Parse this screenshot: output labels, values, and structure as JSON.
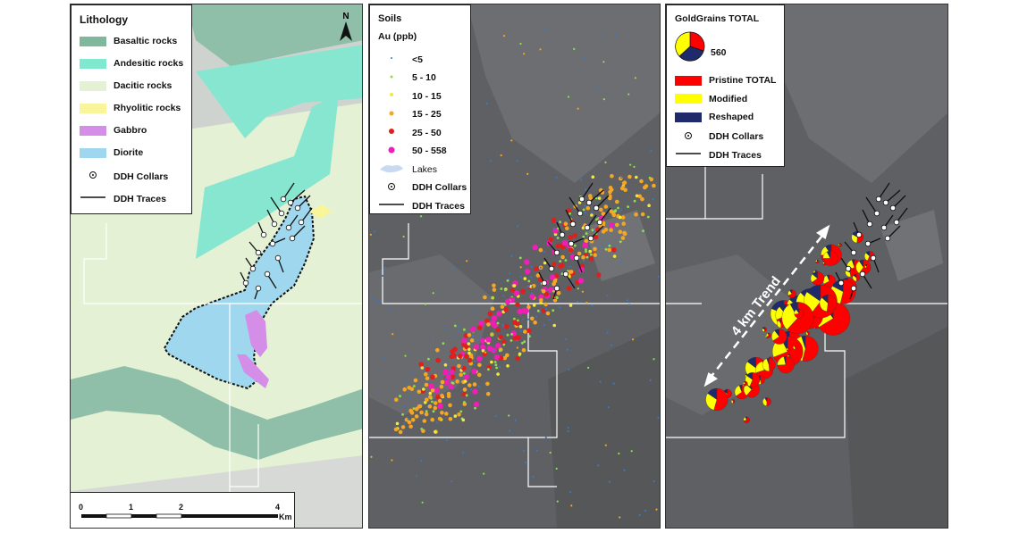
{
  "panel1": {
    "legend": {
      "title": "Lithology",
      "items": [
        {
          "label": "Basaltic rocks",
          "color": "#7fb89d"
        },
        {
          "label": "Andesitic rocks",
          "color": "#7fe8cf"
        },
        {
          "label": "Dacitic rocks",
          "color": "#e4f1d5"
        },
        {
          "label": "Rhyolitic rocks",
          "color": "#f8f59a"
        },
        {
          "label": "Gabbro",
          "color": "#d48ee8"
        },
        {
          "label": "Diorite",
          "color": "#9fd7ee"
        },
        {
          "label": "DDH Collars",
          "symbol": "collar"
        },
        {
          "label": "DDH Traces",
          "symbol": "trace"
        }
      ]
    },
    "north": "N",
    "scale": {
      "labels": [
        "0",
        "1",
        "2",
        "4"
      ],
      "unit": "Km"
    }
  },
  "panel2": {
    "legend": {
      "title": "Soils",
      "subtitle": "Au (ppb)",
      "items": [
        {
          "label": "<5",
          "color": "#3a78c8"
        },
        {
          "label": "5 - 10",
          "color": "#8ee04a"
        },
        {
          "label": "10 - 15",
          "color": "#f2e83a"
        },
        {
          "label": "15 - 25",
          "color": "#f5a623"
        },
        {
          "label": "25 - 50",
          "color": "#e01e1e"
        },
        {
          "label": "50 - 558",
          "color": "#f01eb4"
        },
        {
          "label": "Lakes",
          "color": "#c9daf0"
        },
        {
          "label": "DDH Collars",
          "symbol": "collar"
        },
        {
          "label": "DDH Traces",
          "symbol": "trace"
        }
      ]
    }
  },
  "panel3": {
    "legend": {
      "title": "GoldGrains  TOTAL",
      "pie_value": "560",
      "items": [
        {
          "label": "Pristine  TOTAL",
          "color": "#ff0000"
        },
        {
          "label": "Modified",
          "color": "#ffff00"
        },
        {
          "label": "Reshaped",
          "color": "#1f2a6b"
        },
        {
          "label": "DDH Collars",
          "symbol": "collar"
        },
        {
          "label": "DDH Traces",
          "symbol": "trace"
        }
      ]
    },
    "trend_label": "4 km Trend"
  }
}
